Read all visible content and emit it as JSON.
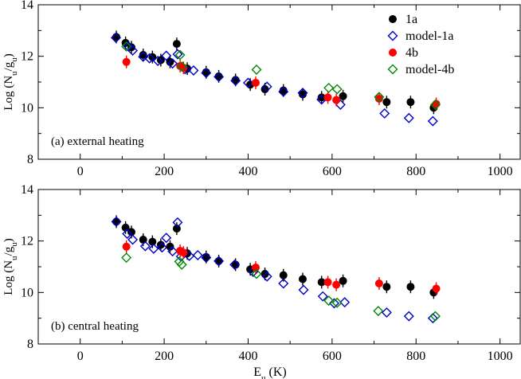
{
  "chart_data": [
    {
      "type": "scatter",
      "panel_label": "(a) external heating",
      "ylabel": "Log (N_u/g_u)",
      "xlabel": "",
      "xlim": [
        -100,
        1050
      ],
      "ylim": [
        8,
        14
      ],
      "xticks": [
        0,
        200,
        400,
        600,
        800,
        1000
      ],
      "yticks": [
        8,
        10,
        12,
        14
      ],
      "legend": {
        "position": "top-right",
        "entries": [
          "1a",
          "model-1a",
          "4b",
          "model-4b"
        ]
      },
      "series": [
        {
          "name": "1a",
          "marker": "filled-circle",
          "color": "#000000",
          "points": [
            [
              86,
              12.75
            ],
            [
              108,
              12.52
            ],
            [
              122,
              12.35
            ],
            [
              150,
              12.05
            ],
            [
              172,
              11.97
            ],
            [
              192,
              11.85
            ],
            [
              214,
              11.78
            ],
            [
              230,
              12.48
            ],
            [
              255,
              11.52
            ],
            [
              300,
              11.38
            ],
            [
              330,
              11.22
            ],
            [
              370,
              11.08
            ],
            [
              405,
              10.9
            ],
            [
              440,
              10.72
            ],
            [
              484,
              10.67
            ],
            [
              530,
              10.52
            ],
            [
              575,
              10.4
            ],
            [
              626,
              10.45
            ],
            [
              730,
              10.22
            ],
            [
              787,
              10.22
            ],
            [
              842,
              10.0
            ]
          ]
        },
        {
          "name": "model-1a",
          "marker": "open-diamond",
          "color": "#0000cc",
          "points": [
            [
              85,
              12.72
            ],
            [
              115,
              12.38
            ],
            [
              125,
              12.22
            ],
            [
              150,
              11.98
            ],
            [
              165,
              11.92
            ],
            [
              185,
              11.82
            ],
            [
              205,
              12.02
            ],
            [
              220,
              11.72
            ],
            [
              232,
              12.08
            ],
            [
              250,
              11.5
            ],
            [
              270,
              11.45
            ],
            [
              300,
              11.35
            ],
            [
              330,
              11.2
            ],
            [
              370,
              11.05
            ],
            [
              400,
              10.97
            ],
            [
              445,
              10.82
            ],
            [
              484,
              10.62
            ],
            [
              530,
              10.58
            ],
            [
              575,
              10.32
            ],
            [
              620,
              10.12
            ],
            [
              725,
              9.78
            ],
            [
              783,
              9.6
            ],
            [
              840,
              9.48
            ]
          ]
        },
        {
          "name": "4b",
          "marker": "filled-circle",
          "color": "#ff0000",
          "points": [
            [
              110,
              11.78
            ],
            [
              238,
              11.62
            ],
            [
              246,
              11.55
            ],
            [
              418,
              10.97
            ],
            [
              590,
              10.4
            ],
            [
              610,
              10.3
            ],
            [
              712,
              10.35
            ],
            [
              848,
              10.15
            ]
          ]
        },
        {
          "name": "model-4b",
          "marker": "open-diamond",
          "color": "#008800",
          "points": [
            [
              110,
              12.38
            ],
            [
              238,
              12.05
            ],
            [
              242,
              11.6
            ],
            [
              420,
              11.48
            ],
            [
              592,
              10.77
            ],
            [
              612,
              10.72
            ],
            [
              712,
              10.42
            ],
            [
              846,
              10.12
            ]
          ]
        }
      ]
    },
    {
      "type": "scatter",
      "panel_label": "(b) central heating",
      "ylabel": "Log (N_u/g_u)",
      "xlabel": "E_u (K)",
      "xlim": [
        -100,
        1050
      ],
      "ylim": [
        8,
        14
      ],
      "xticks": [
        0,
        200,
        400,
        600,
        800,
        1000
      ],
      "yticks": [
        8,
        10,
        12,
        14
      ],
      "series": [
        {
          "name": "1a",
          "marker": "filled-circle",
          "color": "#000000",
          "points": [
            [
              86,
              12.75
            ],
            [
              108,
              12.52
            ],
            [
              122,
              12.35
            ],
            [
              150,
              12.05
            ],
            [
              172,
              11.97
            ],
            [
              192,
              11.85
            ],
            [
              214,
              11.78
            ],
            [
              230,
              12.48
            ],
            [
              255,
              11.52
            ],
            [
              300,
              11.38
            ],
            [
              330,
              11.22
            ],
            [
              370,
              11.08
            ],
            [
              405,
              10.9
            ],
            [
              440,
              10.72
            ],
            [
              484,
              10.67
            ],
            [
              530,
              10.52
            ],
            [
              575,
              10.4
            ],
            [
              626,
              10.45
            ],
            [
              730,
              10.22
            ],
            [
              787,
              10.22
            ],
            [
              842,
              10.0
            ]
          ]
        },
        {
          "name": "model-1a",
          "marker": "open-diamond",
          "color": "#0000cc",
          "points": [
            [
              86,
              12.75
            ],
            [
              112,
              12.28
            ],
            [
              125,
              12.05
            ],
            [
              155,
              11.8
            ],
            [
              175,
              11.7
            ],
            [
              195,
              11.75
            ],
            [
              205,
              12.12
            ],
            [
              220,
              11.6
            ],
            [
              232,
              12.72
            ],
            [
              240,
              11.4
            ],
            [
              260,
              11.42
            ],
            [
              280,
              11.45
            ],
            [
              300,
              11.35
            ],
            [
              330,
              11.22
            ],
            [
              368,
              11.08
            ],
            [
              412,
              10.8
            ],
            [
              445,
              10.62
            ],
            [
              484,
              10.35
            ],
            [
              532,
              10.1
            ],
            [
              578,
              9.85
            ],
            [
              605,
              9.58
            ],
            [
              630,
              9.62
            ],
            [
              730,
              9.22
            ],
            [
              783,
              9.08
            ],
            [
              840,
              9.0
            ]
          ]
        },
        {
          "name": "4b",
          "marker": "filled-circle",
          "color": "#ff0000",
          "points": [
            [
              110,
              11.78
            ],
            [
              238,
              11.62
            ],
            [
              246,
              11.55
            ],
            [
              418,
              10.97
            ],
            [
              590,
              10.4
            ],
            [
              610,
              10.3
            ],
            [
              712,
              10.35
            ],
            [
              848,
              10.15
            ]
          ]
        },
        {
          "name": "model-4b",
          "marker": "open-diamond",
          "color": "#008800",
          "points": [
            [
              110,
              11.35
            ],
            [
              236,
              11.2
            ],
            [
              242,
              11.08
            ],
            [
              420,
              10.72
            ],
            [
              592,
              9.68
            ],
            [
              612,
              9.6
            ],
            [
              710,
              9.28
            ],
            [
              846,
              9.08
            ]
          ]
        }
      ]
    }
  ]
}
